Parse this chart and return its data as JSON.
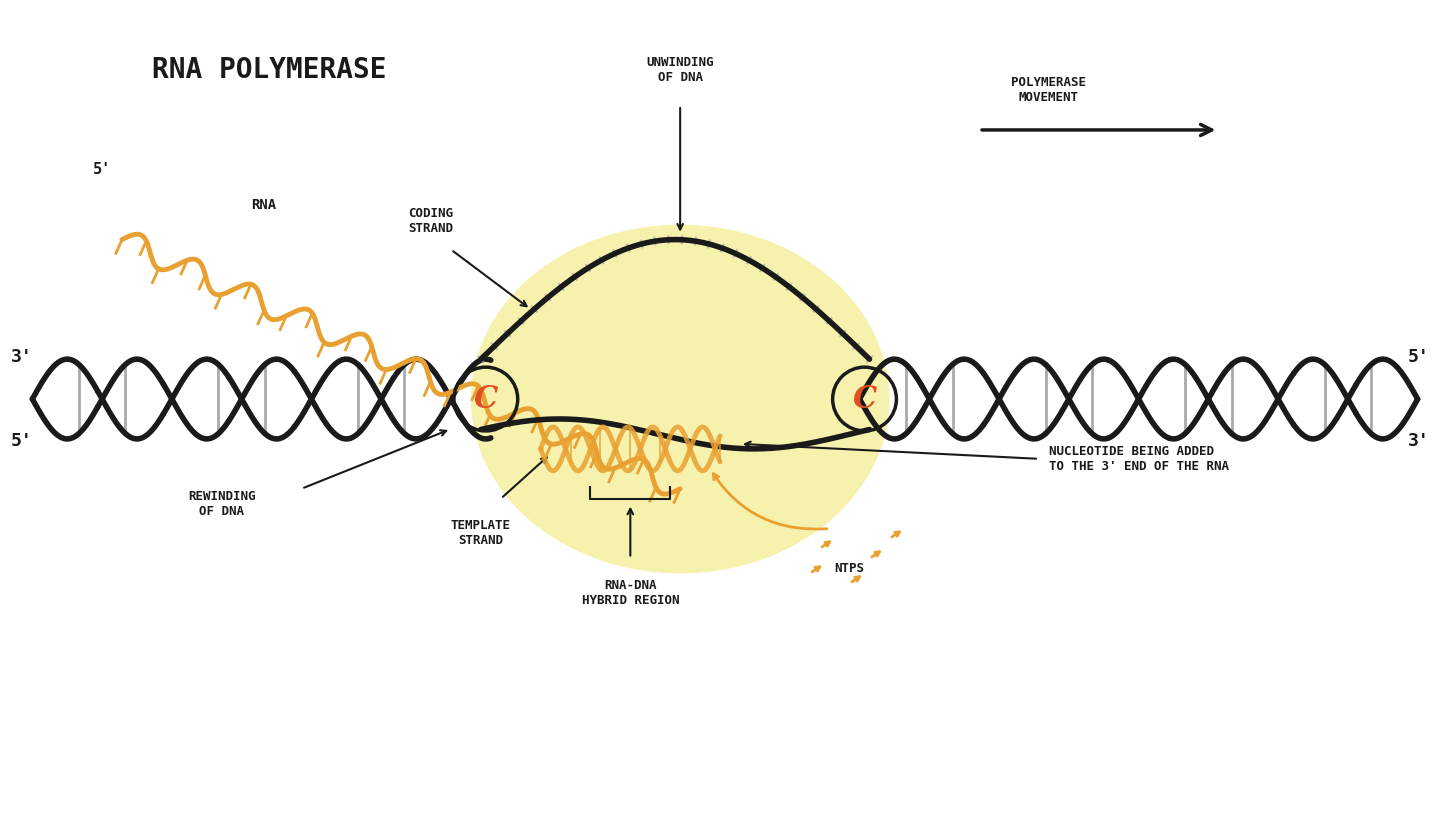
{
  "title": "RNA POLYMERASE",
  "bg_color": "#ffffff",
  "dna_color": "#1a1a1a",
  "dna_rungs_color": "#aaaaaa",
  "yellow_ellipse_color": "#f5f0a0",
  "yellow_ellipse_alpha": 0.85,
  "coding_strand_color": "#1a1a1a",
  "template_strand_color": "#1a1a1a",
  "rna_color": "#e8a030",
  "ntps_color": "#e8a030",
  "orange_circle_color": "#e05020",
  "annotation_color": "#1a1a1a",
  "labels": {
    "title": "RNA POLYMERASE",
    "coding_strand": "CODING\nSTRAND",
    "template_strand": "TEMPLATE\nSTRAND",
    "rna": "RNA",
    "rna_5prime": "5'",
    "unwinding": "UNWINDING\nOF DNA",
    "polymerase_movement": "POLYMERASE\nMOVEMENT",
    "rewinding": "REWINDING\nOF DNA",
    "nucleotide_added": "NUCLEOTIDE BEING ADDED\nTO THE 3' END OF THE RNA",
    "ntps": "NTPS",
    "rna_dna_hybrid": "RNA-DNA\nHYBRID REGION",
    "left_3prime": "3'",
    "left_5prime": "5'",
    "right_5prime": "5'",
    "right_3prime": "3'"
  }
}
